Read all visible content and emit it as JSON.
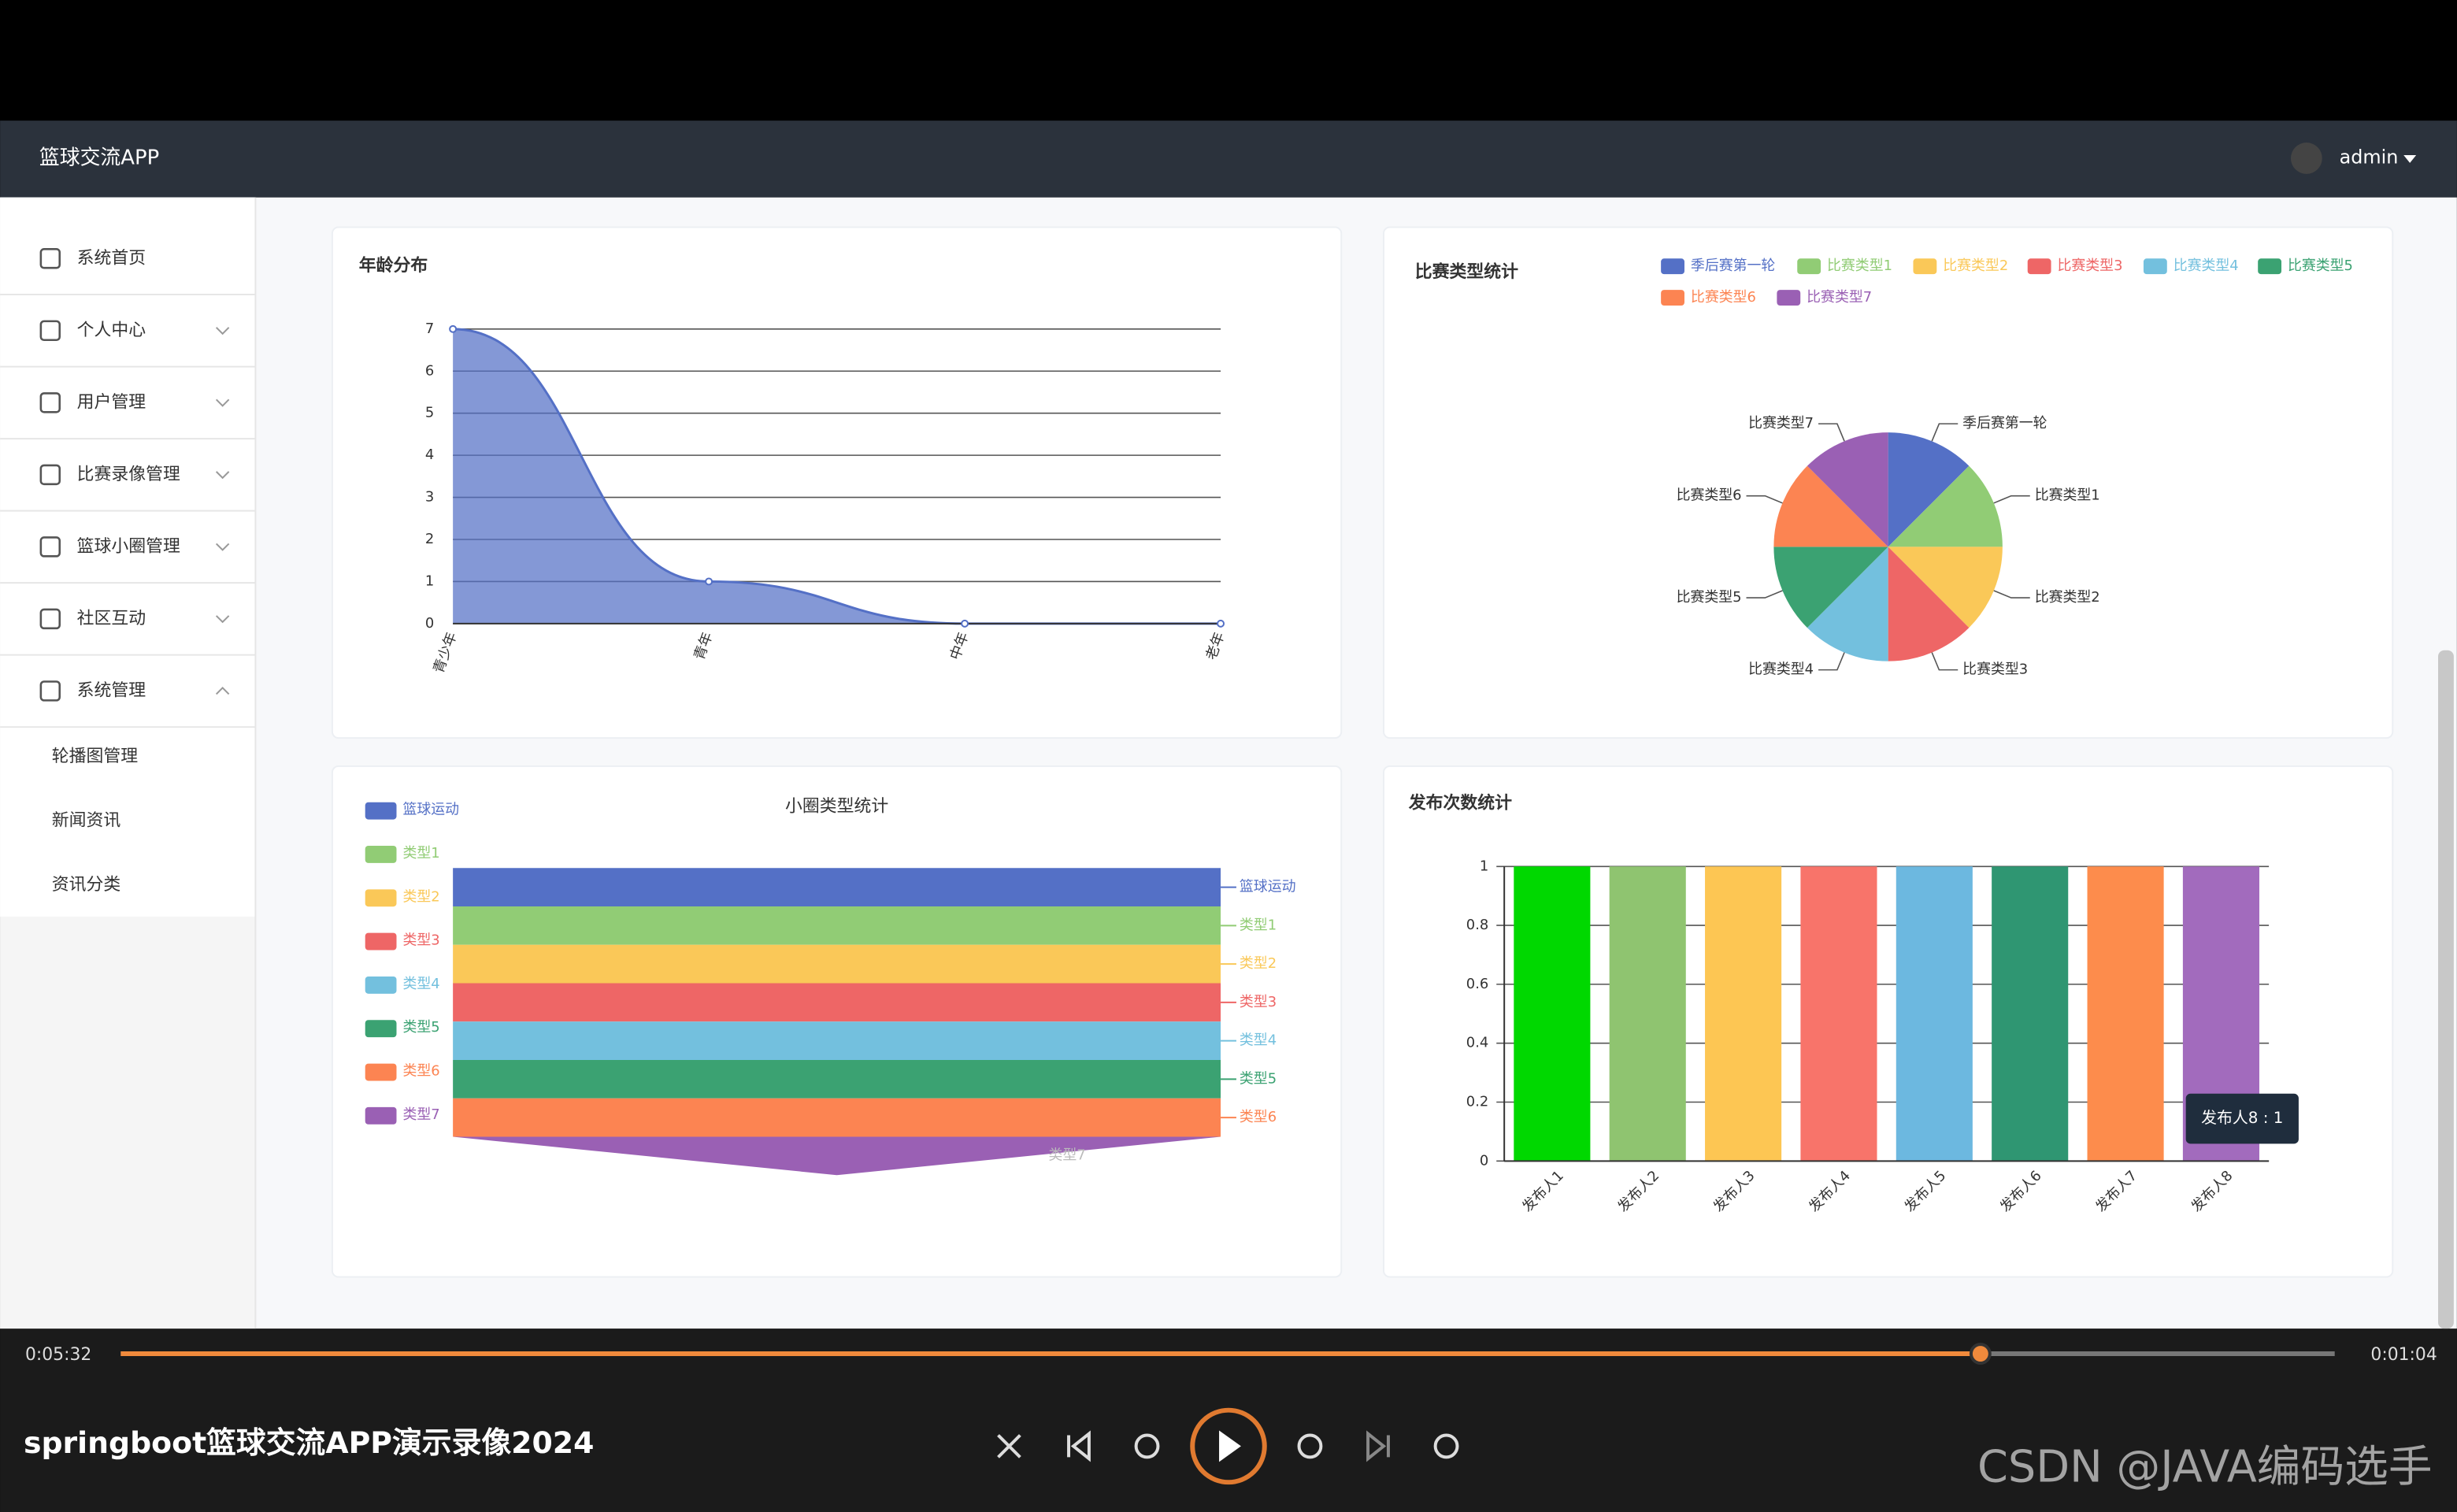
{
  "header": {
    "app_title": "篮球交流APP",
    "user": "admin"
  },
  "sidebar": {
    "menu": [
      "系统首页",
      "个人中心",
      "用户管理",
      "比赛录像管理",
      "篮球小圈管理",
      "社区互动",
      "系统管理"
    ],
    "submenu": [
      "轮播图管理",
      "新闻资讯",
      "资讯分类"
    ]
  },
  "chart_data": [
    {
      "type": "area",
      "title": "年龄分布",
      "categories": [
        "青少年",
        "青年",
        "中年",
        "老年"
      ],
      "values": [
        7,
        1,
        0,
        0
      ],
      "color": "#5470c6",
      "ylim": [
        0,
        7
      ],
      "yticks": [
        0,
        1,
        2,
        3,
        4,
        5,
        6,
        7
      ],
      "grid": true
    },
    {
      "type": "pie",
      "title": "比赛类型统计",
      "categories": [
        "季后赛第一轮",
        "比赛类型1",
        "比赛类型2",
        "比赛类型3",
        "比赛类型4",
        "比赛类型5",
        "比赛类型6",
        "比赛类型7"
      ],
      "values": [
        1,
        1,
        1,
        1,
        1,
        1,
        1,
        1
      ],
      "colors": [
        "#5470c6",
        "#91cc75",
        "#fac858",
        "#ee6666",
        "#73c0de",
        "#3ba272",
        "#fc8452",
        "#9a60b4"
      ],
      "legend": "top-right"
    },
    {
      "type": "funnel",
      "title": "小圈类型统计",
      "categories": [
        "篮球运动",
        "类型1",
        "类型2",
        "类型3",
        "类型4",
        "类型5",
        "类型6",
        "类型7"
      ],
      "values": [
        1,
        1,
        1,
        1,
        1,
        1,
        1,
        1
      ],
      "colors": [
        "#5470c6",
        "#91cc75",
        "#fac858",
        "#ee6666",
        "#73c0de",
        "#3ba272",
        "#fc8452",
        "#9a60b4"
      ],
      "legend": "left"
    },
    {
      "type": "bar",
      "title": "发布次数统计",
      "categories": [
        "发布人1",
        "发布人2",
        "发布人3",
        "发布人4",
        "发布人5",
        "发布人6",
        "发布人7",
        "发布人8"
      ],
      "values": [
        1,
        1,
        1,
        1,
        1,
        1,
        1,
        1
      ],
      "colors": [
        "#00d800",
        "#8fc470",
        "#fdc653",
        "#f8746a",
        "#6cb8e0",
        "#2f9672",
        "#fd8c4c",
        "#a26bbd"
      ],
      "ylim": [
        0,
        1
      ],
      "yticks": [
        0,
        0.2,
        0.4,
        0.6,
        0.8,
        1
      ],
      "grid": true,
      "tooltip": "发布人8 : 1"
    }
  ],
  "video": {
    "elapsed": "0:05:32",
    "remaining": "0:01:04",
    "title": "springboot篮球交流APP演示录像2024",
    "progress": 0.84
  },
  "watermark": "CSDN @JAVA编码选手"
}
